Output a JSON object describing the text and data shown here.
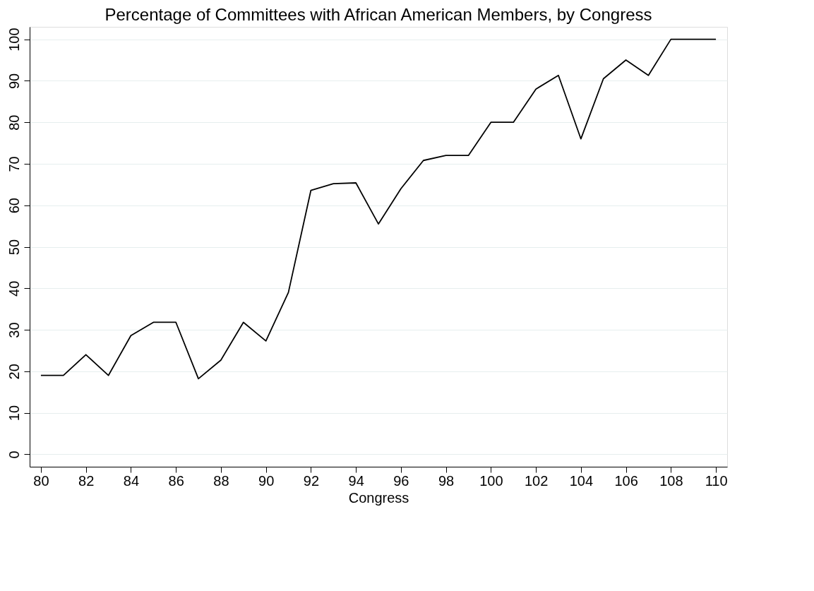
{
  "chart_data": {
    "type": "line",
    "title": "Percentage of Committees with African American Members, by Congress",
    "xlabel": "Congress",
    "x": [
      80,
      81,
      82,
      83,
      84,
      85,
      86,
      87,
      88,
      89,
      90,
      91,
      92,
      93,
      94,
      95,
      96,
      97,
      98,
      99,
      100,
      101,
      102,
      103,
      104,
      105,
      106,
      107,
      108,
      109,
      110
    ],
    "series": [
      {
        "color": "#000000",
        "values": [
          19,
          19,
          24,
          19,
          28.6,
          31.8,
          31.8,
          18.2,
          22.7,
          31.8,
          27.3,
          39,
          63.6,
          65.2,
          65.4,
          55.5,
          64,
          70.8,
          72,
          72,
          80,
          80,
          88,
          91.3,
          76,
          90.5,
          95,
          91.3,
          100,
          100,
          100
        ]
      }
    ],
    "xlim": [
      79.5,
      110.5
    ],
    "xticks": [
      80,
      82,
      84,
      86,
      88,
      90,
      92,
      94,
      96,
      98,
      100,
      102,
      104,
      106,
      108,
      110
    ],
    "ylim": [
      -3,
      103
    ],
    "yticks": [
      0,
      10,
      20,
      30,
      40,
      50,
      60,
      70,
      80,
      90,
      100
    ],
    "grid": "y"
  }
}
